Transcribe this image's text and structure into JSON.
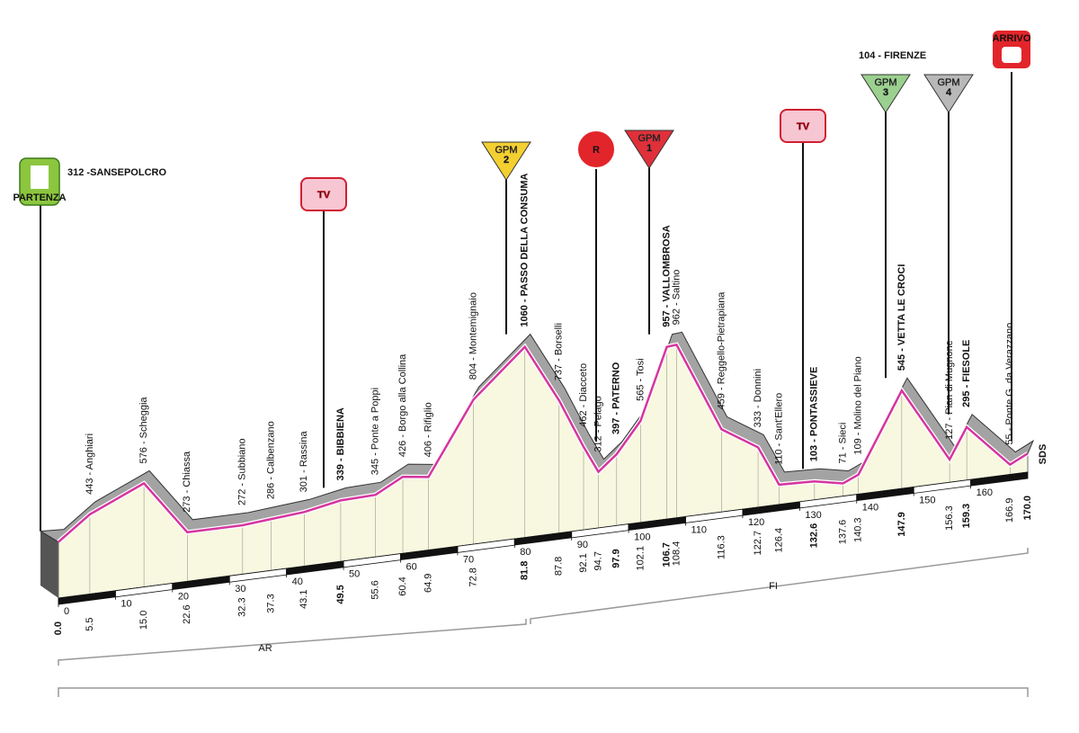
{
  "chart_data": {
    "type": "profile",
    "start": {
      "label": "312 -SANSEPOLCRO",
      "badge": "PARTENZA"
    },
    "finish": {
      "label": "104 - FIRENZE",
      "badge": "ARRIVO"
    },
    "tv": [
      "TV",
      "TV"
    ],
    "sprint": "R",
    "gpm": [
      {
        "text": "GPM",
        "rank": 2
      },
      {
        "text": "GPM",
        "rank": 1
      },
      {
        "text": "GPM",
        "rank": 3
      },
      {
        "text": "GPM",
        "rank": 4
      }
    ],
    "provinces": [
      "AR",
      "FI"
    ],
    "finish_marker": "SDS",
    "x": [
      {
        "value": 0,
        "label": "0.0"
      },
      5.5,
      {
        "value": 15,
        "label": "15.0"
      },
      22.6,
      32.3,
      37.3,
      43.1,
      49.5,
      55.6,
      60.4,
      64.9,
      72.8,
      81.8,
      87.8,
      92.1,
      94.7,
      97.9,
      102.1,
      106.7,
      108.4,
      116.3,
      122.7,
      126.4,
      132.6,
      137.6,
      140.3,
      147.9,
      156.3,
      159.3,
      166.9,
      {
        "value": 170,
        "label": "170.0"
      }
    ],
    "values": [
      312,
      443,
      576,
      273,
      272,
      286,
      301,
      339,
      345,
      426,
      406,
      804,
      1060,
      737,
      462,
      312,
      397,
      565,
      957,
      962,
      459,
      333,
      110,
      103,
      71,
      109,
      545,
      127,
      295,
      55,
      104
    ],
    "labels": [
      null,
      "443 - Anghiari",
      "576 - Scheggia",
      "273 - Chiassa",
      "272 - Subbiano",
      "286 - Calbenzano",
      "301 - Rassina",
      "339 - BIBBIENA",
      "345 - Ponte a Poppi",
      "426 - Borgo alla Collina",
      "406 - Rifiglio",
      "804 - Montemignaio",
      "1060 - PASSO DELLA CONSUMA",
      "737 - Borselli",
      "462 - Diacceto",
      "312 - Pelago",
      "397 - PATERNO",
      "565 - Tosi",
      "957 - VALLOMBROSA",
      "962 - Saltino",
      "459 - Reggello-Pietrapiana",
      "333 - Donnini",
      "110 - Sant'Ellero",
      "103 - PONTASSIEVE",
      "71 - Sieci",
      "109 - Molino del Piano",
      "545 - VETTA LE CROCI",
      "127 - Pian di Mugnone",
      "295 - FIESOLE",
      "55 - Ponte G. da Verazzano",
      null
    ],
    "bold": [
      true,
      false,
      false,
      false,
      false,
      false,
      false,
      true,
      false,
      false,
      false,
      false,
      true,
      false,
      false,
      false,
      true,
      false,
      true,
      false,
      false,
      false,
      false,
      true,
      false,
      false,
      true,
      false,
      true,
      false,
      true
    ],
    "xlim": [
      0,
      170
    ],
    "xticks": [
      0,
      10,
      20,
      30,
      40,
      50,
      60,
      70,
      80,
      90,
      100,
      110,
      120,
      130,
      140,
      150,
      160
    ],
    "line_color": "#d6359f",
    "ridge_color": "#a3a3a3",
    "fill_color": "#f7f8df"
  }
}
